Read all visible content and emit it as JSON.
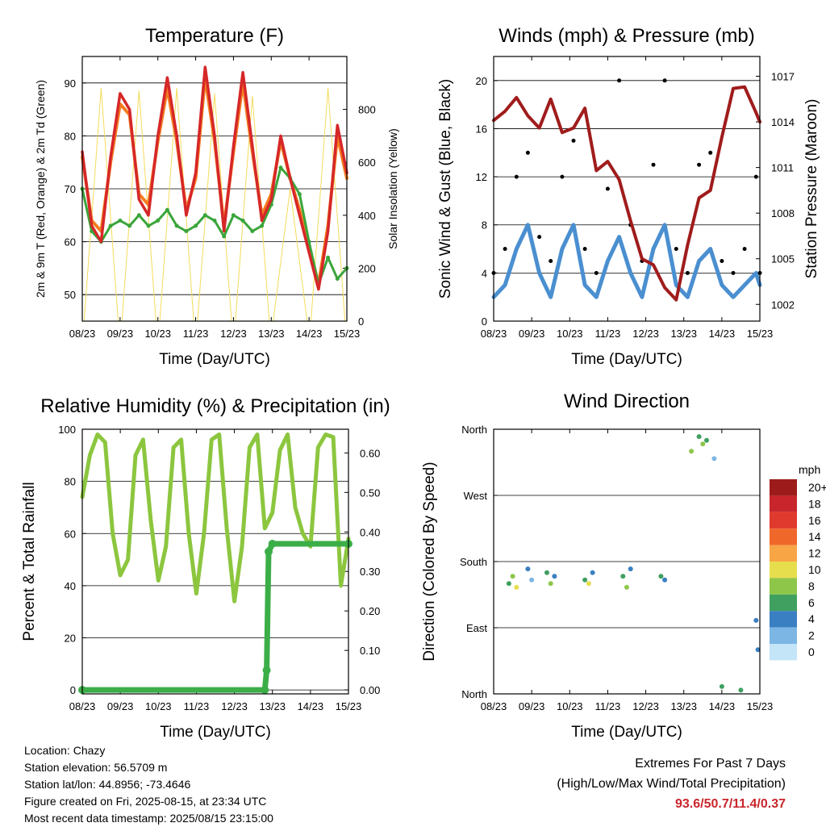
{
  "colors": {
    "temp_2m": "#d62728",
    "temp_9m": "#f57c20",
    "dewpoint": "#3aa53a",
    "solar": "#f3dc5a",
    "wind_sonic": "#4a8fd0",
    "gust": "#000000",
    "pressure": "#a01c1c",
    "rh": "#8cc63f",
    "precip": "#3cae48"
  },
  "common": {
    "xlabel": "Time (Day/UTC)",
    "x_ticks": [
      "08/23",
      "09/23",
      "10/23",
      "11/23",
      "12/23",
      "13/23",
      "14/23",
      "15/23"
    ]
  },
  "chart_data": [
    {
      "id": "temperature",
      "type": "line",
      "title": "Temperature (F)",
      "ylabel_left": "2m & 9m T (Red, Orange) & 2m Td (Green)",
      "ylabel_right": "Solar Insolation (Yellow)",
      "x_ticks": [
        "08/23",
        "09/23",
        "10/23",
        "11/23",
        "12/23",
        "13/23",
        "14/23",
        "15/23"
      ],
      "ylim_left": [
        45,
        95
      ],
      "yticks_left": [
        50,
        60,
        70,
        80,
        90
      ],
      "ylim_right": [
        0,
        1000
      ],
      "yticks_right": [
        0,
        200,
        400,
        600,
        800
      ],
      "grid": "horizontal",
      "series": [
        {
          "name": "2m T",
          "axis": "left",
          "color": "#d62728",
          "x": [
            0,
            0.25,
            0.5,
            0.75,
            1,
            1.25,
            1.5,
            1.75,
            2,
            2.25,
            2.5,
            2.75,
            3,
            3.25,
            3.5,
            3.75,
            4,
            4.25,
            4.5,
            4.75,
            5,
            5.25,
            5.5,
            5.75,
            6,
            6.25,
            6.5,
            6.75,
            7
          ],
          "y": [
            77,
            63,
            60,
            76,
            88,
            85,
            68,
            65,
            80,
            91,
            80,
            65,
            73,
            93,
            80,
            62,
            78,
            92,
            78,
            64,
            68,
            80,
            72,
            65,
            58,
            51,
            62,
            82,
            73
          ]
        },
        {
          "name": "9m T",
          "axis": "left",
          "color": "#f57c20",
          "x": [
            0,
            0.25,
            0.5,
            0.75,
            1,
            1.25,
            1.5,
            1.75,
            2,
            2.25,
            2.5,
            2.75,
            3,
            3.25,
            3.5,
            3.75,
            4,
            4.25,
            4.5,
            4.75,
            5,
            5.25,
            5.5,
            5.75,
            6,
            6.25,
            6.5,
            6.75,
            7
          ],
          "y": [
            76,
            64,
            62,
            75,
            86,
            84,
            69,
            67,
            79,
            89,
            79,
            66,
            72,
            91,
            79,
            63,
            77,
            90,
            77,
            65,
            69,
            79,
            72,
            66,
            59,
            52,
            63,
            80,
            72
          ]
        },
        {
          "name": "2m Td",
          "axis": "left",
          "color": "#3aa53a",
          "x": [
            0,
            0.25,
            0.5,
            0.75,
            1,
            1.25,
            1.5,
            1.75,
            2,
            2.25,
            2.5,
            2.75,
            3,
            3.25,
            3.5,
            3.75,
            4,
            4.25,
            4.5,
            4.75,
            5,
            5.25,
            5.5,
            5.75,
            6,
            6.25,
            6.5,
            6.75,
            7
          ],
          "y": [
            70,
            62,
            60,
            63,
            64,
            63,
            65,
            63,
            64,
            66,
            63,
            62,
            63,
            65,
            64,
            61,
            65,
            64,
            62,
            63,
            67,
            74,
            72,
            69,
            60,
            52,
            57,
            53,
            55
          ]
        },
        {
          "name": "Solar Insolation",
          "axis": "right",
          "color": "#f3dc5a",
          "x": [
            0,
            0.05,
            0.5,
            0.95,
            1.05,
            1.5,
            1.95,
            2.05,
            2.5,
            2.95,
            3.05,
            3.5,
            3.95,
            4.05,
            4.5,
            4.95,
            5.05,
            5.5,
            5.95,
            6.05,
            6.5,
            6.95,
            7
          ],
          "y": [
            0,
            0,
            880,
            0,
            0,
            870,
            0,
            0,
            880,
            0,
            0,
            860,
            0,
            0,
            850,
            0,
            0,
            500,
            0,
            0,
            880,
            0,
            0
          ]
        }
      ]
    },
    {
      "id": "winds",
      "type": "scatter",
      "title": "Winds (mph) & Pressure (mb)",
      "ylabel_left": "Sonic Wind & Gust (Blue, Black)",
      "ylabel_right": "Station Pressure (Maroon)",
      "x_ticks": [
        "08/23",
        "09/23",
        "10/23",
        "11/23",
        "12/23",
        "13/23",
        "14/23",
        "15/23"
      ],
      "ylim_left": [
        0,
        22
      ],
      "yticks_left": [
        0,
        4,
        8,
        12,
        16,
        20
      ],
      "ylim_right": [
        1000.9,
        1018.3
      ],
      "yticks_right": [
        1002,
        1005,
        1008,
        1011,
        1014,
        1017
      ],
      "grid": "horizontal",
      "series": [
        {
          "name": "Sonic Wind",
          "axis": "left",
          "color": "#4a8fd0",
          "x": [
            0,
            0.3,
            0.6,
            0.9,
            1.2,
            1.5,
            1.8,
            2.1,
            2.4,
            2.7,
            3.0,
            3.3,
            3.6,
            3.9,
            4.2,
            4.5,
            4.8,
            5.1,
            5.4,
            5.7,
            6.0,
            6.3,
            6.6,
            6.9,
            7
          ],
          "y": [
            2,
            3,
            6,
            8,
            4,
            2,
            6,
            8,
            3,
            2,
            5,
            7,
            4,
            2,
            6,
            8,
            3,
            2,
            5,
            6,
            3,
            2,
            3,
            4,
            3
          ]
        },
        {
          "name": "Gust",
          "axis": "left",
          "color": "#000000",
          "x": [
            0,
            0.3,
            0.6,
            0.9,
            1.2,
            1.5,
            1.8,
            2.1,
            2.4,
            2.7,
            3.0,
            3.3,
            3.6,
            3.9,
            4.2,
            4.5,
            4.8,
            5.1,
            5.4,
            5.7,
            6.0,
            6.3,
            6.6,
            6.9,
            7
          ],
          "y": [
            4,
            6,
            12,
            14,
            7,
            5,
            12,
            15,
            6,
            4,
            11,
            20,
            8,
            5,
            13,
            20,
            6,
            4,
            13,
            14,
            5,
            4,
            6,
            12,
            4
          ]
        },
        {
          "name": "Station Pressure",
          "axis": "right",
          "color": "#a01c1c",
          "x": [
            0,
            0.3,
            0.6,
            0.9,
            1.2,
            1.5,
            1.8,
            2.1,
            2.4,
            2.7,
            3.0,
            3.3,
            3.6,
            3.9,
            4.2,
            4.5,
            4.8,
            5.1,
            5.4,
            5.7,
            6.0,
            6.3,
            6.6,
            6.9,
            7
          ],
          "y": [
            1014.1,
            1014.7,
            1015.6,
            1014.4,
            1013.6,
            1015.5,
            1013.3,
            1013.6,
            1014.9,
            1010.8,
            1011.4,
            1010.2,
            1007.5,
            1005.0,
            1004.6,
            1003.1,
            1002.3,
            1005.9,
            1009.0,
            1009.5,
            1013.0,
            1016.2,
            1016.3,
            1014.6,
            1014.0
          ]
        }
      ]
    },
    {
      "id": "humidity",
      "type": "line",
      "title": "Relative Humidity (%) & Precipitation (in)",
      "ylabel_left": "Percent & Total Rainfall",
      "x_ticks": [
        "08/23",
        "09/23",
        "10/23",
        "11/23",
        "12/23",
        "13/23",
        "14/23",
        "15/23"
      ],
      "ylim_left": [
        -1.5,
        100
      ],
      "yticks_left": [
        0,
        20,
        40,
        60,
        80,
        100
      ],
      "ylim_right": [
        -0.01,
        0.66
      ],
      "yticks_right": [
        "0.00",
        "0.10",
        "0.20",
        "0.30",
        "0.40",
        "0.50",
        "0.60"
      ],
      "grid": "horizontal",
      "series": [
        {
          "name": "Relative Humidity",
          "axis": "left",
          "color": "#8cc63f",
          "x": [
            0,
            0.2,
            0.4,
            0.6,
            0.8,
            1.0,
            1.2,
            1.4,
            1.6,
            1.8,
            2.0,
            2.2,
            2.4,
            2.6,
            2.8,
            3.0,
            3.2,
            3.4,
            3.6,
            3.8,
            4.0,
            4.2,
            4.4,
            4.6,
            4.8,
            5.0,
            5.2,
            5.4,
            5.6,
            5.8,
            6.0,
            6.2,
            6.4,
            6.6,
            6.8,
            7.0
          ],
          "y": [
            74,
            90,
            98,
            95,
            60,
            44,
            50,
            90,
            96,
            65,
            42,
            55,
            93,
            96,
            60,
            37,
            60,
            96,
            98,
            62,
            34,
            55,
            93,
            98,
            62,
            68,
            92,
            98,
            70,
            60,
            55,
            93,
            98,
            97,
            40,
            58
          ]
        },
        {
          "name": "Total Precipitation",
          "axis": "right",
          "color": "#3cae48",
          "x": [
            0,
            4.8,
            4.85,
            4.9,
            5.0,
            7.0
          ],
          "y": [
            0.0,
            0.0,
            0.05,
            0.35,
            0.37,
            0.37
          ]
        }
      ]
    },
    {
      "id": "direction",
      "type": "scatter",
      "title": "Wind Direction",
      "ylabel_left": "Direction (Colored By Speed)",
      "x_ticks": [
        "08/23",
        "09/23",
        "10/23",
        "11/23",
        "12/23",
        "13/23",
        "14/23",
        "15/23"
      ],
      "y_tick_labels": [
        "North",
        "East",
        "South",
        "West",
        "North"
      ],
      "ylim_left": [
        0,
        360
      ],
      "grid": "horizontal",
      "legend_title": "mph",
      "legend_labels": [
        "20+",
        "18",
        "16",
        "14",
        "12",
        "10",
        "8",
        "6",
        "4",
        "2",
        "0"
      ],
      "legend_colors": [
        "#9e1b1b",
        "#c8262c",
        "#e03a2e",
        "#f0672a",
        "#f8a545",
        "#e7de4e",
        "#8ec64a",
        "#3fa060",
        "#3a7fc1",
        "#7cb6e4",
        "#c4e5f7"
      ],
      "points": {
        "x": [
          0.4,
          0.5,
          0.6,
          0.9,
          1.0,
          1.4,
          1.5,
          1.6,
          2.4,
          2.5,
          2.6,
          3.4,
          3.5,
          3.6,
          4.4,
          4.5,
          5.2,
          5.4,
          5.5,
          5.6,
          5.8,
          6.0,
          6.5,
          6.9,
          6.95
        ],
        "y": [
          150,
          160,
          145,
          170,
          155,
          165,
          150,
          160,
          155,
          150,
          165,
          160,
          145,
          170,
          160,
          155,
          330,
          350,
          340,
          345,
          320,
          10,
          5,
          100,
          60
        ],
        "speed": [
          6,
          8,
          10,
          3,
          2,
          5,
          8,
          4,
          6,
          10,
          4,
          5,
          8,
          3,
          6,
          4,
          8,
          6,
          7,
          5,
          2,
          6,
          5,
          3,
          4
        ]
      }
    }
  ],
  "info": {
    "location": "Location: Chazy",
    "elevation": "Station elevation: 56.5709 m",
    "latlon": "Station lat/lon: 44.8956; -73.4646",
    "created": "Figure created on Fri, 2025-08-15, at 23:34 UTC",
    "recent": "Most recent data timestamp: 2025/08/15 23:15:00"
  },
  "extremes": {
    "title": "Extremes For Past 7 Days",
    "subtitle": "(High/Low/Max Wind/Total Precipitation)",
    "values": "93.6/50.7/11.4/0.37"
  }
}
